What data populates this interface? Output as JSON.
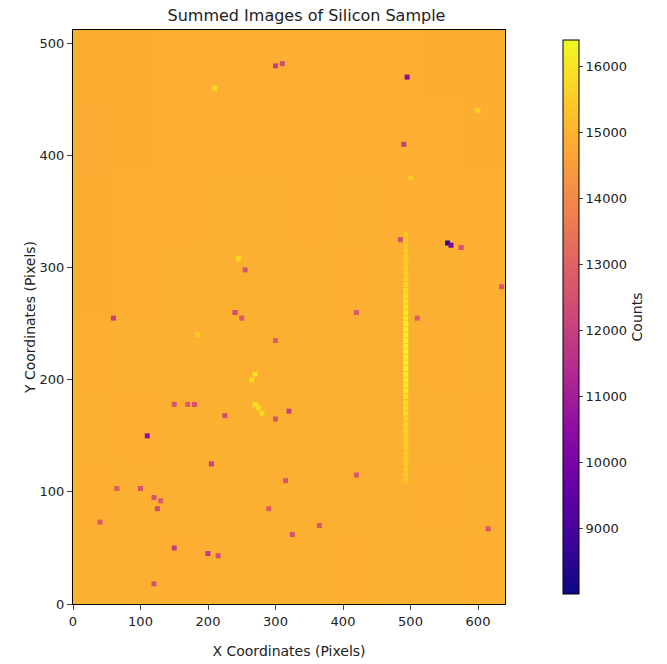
{
  "chart_data": {
    "type": "heatmap",
    "title": "Summed Images of Silicon Sample",
    "x_label": "X Coordinates (Pixels)",
    "y_label": "Y Coordinates (Pixels)",
    "xlim": [
      0,
      640
    ],
    "ylim": [
      0,
      512
    ],
    "xticks": [
      0,
      100,
      200,
      300,
      400,
      500,
      600
    ],
    "yticks": [
      0,
      100,
      200,
      300,
      400,
      500
    ],
    "color": "plasma",
    "colorbar": {
      "title": "Counts",
      "range": [
        8000,
        16400
      ],
      "ticks": [
        9000,
        10000,
        11000,
        12000,
        13000,
        14000,
        15000,
        16000
      ]
    },
    "x": [
      32,
      96,
      160,
      224,
      288,
      352,
      416,
      480,
      544,
      608
    ],
    "y": [
      32,
      96,
      160,
      224,
      288,
      352,
      416,
      480
    ],
    "cells": [
      [
        14920,
        14930,
        14910,
        14920,
        14930,
        14920,
        14910,
        14930,
        14920,
        14910
      ],
      [
        14910,
        14920,
        14930,
        14940,
        14930,
        14920,
        14920,
        14930,
        14910,
        14920
      ],
      [
        14920,
        14910,
        14930,
        14950,
        14940,
        14920,
        14930,
        14920,
        14920,
        14910
      ],
      [
        14900,
        14920,
        14920,
        14950,
        14940,
        14930,
        14920,
        14930,
        14910,
        14920
      ],
      [
        14890,
        14910,
        14920,
        14930,
        14920,
        14920,
        14910,
        14920,
        14920,
        14910
      ],
      [
        14880,
        14900,
        14910,
        14920,
        14920,
        14910,
        14920,
        14910,
        14910,
        14900
      ],
      [
        14870,
        14890,
        14900,
        14910,
        14910,
        14900,
        14910,
        14900,
        14900,
        14890
      ],
      [
        14880,
        14890,
        14900,
        14910,
        14900,
        14900,
        14900,
        14900,
        14890,
        14890
      ]
    ],
    "spots": {
      "x": [
        60,
        110,
        100,
        65,
        120,
        130,
        125,
        40,
        150,
        200,
        215,
        120,
        205,
        150,
        170,
        180,
        225,
        240,
        250,
        255,
        300,
        300,
        320,
        315,
        325,
        290,
        365,
        420,
        420,
        300,
        310,
        495,
        555,
        560,
        575,
        490,
        485,
        510,
        615,
        635,
        270,
        275,
        280,
        265,
        270,
        245,
        210,
        600,
        500,
        185,
        493,
        493,
        493,
        493,
        493,
        493,
        493,
        493,
        493,
        493,
        493,
        493,
        493,
        493,
        493,
        493,
        493,
        493,
        493,
        493,
        493,
        493,
        493,
        493,
        493,
        493,
        493,
        493,
        493,
        493,
        493,
        493,
        493,
        493,
        493,
        493,
        493,
        493,
        493,
        493,
        493,
        493,
        493,
        493,
        493
      ],
      "y": [
        255,
        150,
        103,
        103,
        95,
        92,
        85,
        73,
        50,
        45,
        43,
        18,
        125,
        178,
        178,
        178,
        168,
        260,
        255,
        298,
        235,
        165,
        172,
        110,
        62,
        85,
        70,
        115,
        260,
        480,
        482,
        470,
        322,
        320,
        318,
        410,
        325,
        255,
        67,
        283,
        178,
        175,
        170,
        200,
        205,
        308,
        460,
        440,
        380,
        240,
        110,
        115,
        120,
        125,
        130,
        135,
        140,
        145,
        150,
        155,
        160,
        165,
        170,
        175,
        180,
        185,
        190,
        195,
        200,
        205,
        210,
        215,
        220,
        225,
        230,
        235,
        240,
        245,
        250,
        255,
        260,
        265,
        270,
        275,
        280,
        285,
        290,
        295,
        300,
        305,
        310,
        315,
        320,
        325,
        330
      ],
      "values": [
        12000,
        10500,
        12500,
        12800,
        12500,
        12800,
        12300,
        12800,
        12000,
        11800,
        12500,
        12500,
        12000,
        12600,
        12800,
        12500,
        12300,
        12300,
        12700,
        12600,
        12800,
        12500,
        12000,
        12600,
        12500,
        12800,
        12700,
        12700,
        12800,
        12000,
        12300,
        10500,
        8500,
        10000,
        12500,
        12000,
        12500,
        12800,
        12600,
        12600,
        15900,
        15900,
        15800,
        15800,
        15900,
        15800,
        15800,
        15600,
        15500,
        15600,
        15400,
        15400,
        15450,
        15500,
        15500,
        15500,
        15550,
        15600,
        15600,
        15650,
        15700,
        15700,
        15750,
        15800,
        15800,
        15850,
        16000,
        16100,
        16200,
        16250,
        16300,
        16300,
        16300,
        16350,
        16300,
        16300,
        16300,
        16250,
        16200,
        16150,
        16100,
        16000,
        15900,
        15800,
        15750,
        15700,
        15650,
        15600,
        15550,
        15500,
        15500,
        15450,
        15400,
        15350,
        15300
      ]
    }
  }
}
